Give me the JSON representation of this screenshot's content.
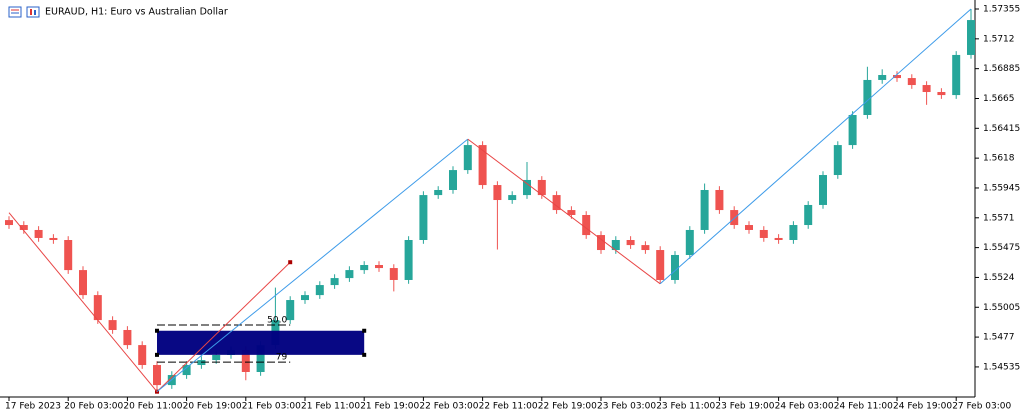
{
  "chart_data": {
    "type": "candlestick",
    "title": "EURAUD, H1:  Euro vs Australian Dollar",
    "annotations": [
      "50.0",
      "79"
    ],
    "categories": [
      "17 Feb 2023",
      null,
      null,
      null,
      "20 Feb 03:00",
      null,
      null,
      null,
      "20 Feb 11:00",
      null,
      null,
      null,
      "20 Feb 19:00",
      null,
      null,
      null,
      "21 Feb 03:00",
      null,
      null,
      null,
      "21 Feb 11:00",
      null,
      null,
      null,
      "21 Feb 19:00",
      null,
      null,
      null,
      "22 Feb 03:00",
      null,
      null,
      null,
      "22 Feb 11:00",
      null,
      null,
      null,
      "22 Feb 19:00",
      null,
      null,
      null,
      "23 Feb 03:00",
      null,
      null,
      null,
      "23 Feb 11:00",
      null,
      null,
      null,
      "23 Feb 19:00",
      null,
      null,
      null,
      "24 Feb 03:00",
      null,
      null,
      null,
      "24 Feb 11:00",
      null,
      null,
      null,
      "24 Feb 19:00",
      null,
      null,
      null,
      "27 Feb 03:00",
      null
    ],
    "open": [
      1.55692,
      1.55653,
      1.55614,
      1.55551,
      1.55535,
      1.55298,
      1.55101,
      1.54904,
      1.54826,
      1.54707,
      1.5455,
      1.54392,
      1.54471,
      1.5455,
      1.54589,
      1.54629,
      1.54668,
      1.54495,
      1.54707,
      1.54904,
      1.55062,
      1.55101,
      1.5518,
      1.55235,
      1.55298,
      1.55338,
      1.55314,
      1.5522,
      1.55535,
      1.55889,
      1.55929,
      1.56086,
      1.56283,
      1.55968,
      1.5585,
      1.55889,
      1.56008,
      1.55889,
      1.55771,
      1.55732,
      1.55574,
      1.55456,
      1.55535,
      1.55495,
      1.55456,
      1.5522,
      1.55417,
      1.55614,
      1.55929,
      1.55771,
      1.55653,
      1.55614,
      1.55551,
      1.55535,
      1.55653,
      1.55811,
      1.56047,
      1.56283,
      1.5652,
      1.56796,
      1.56835,
      1.56811,
      1.56756,
      1.56701,
      1.56677,
      1.56993
    ],
    "high": [
      1.55722,
      1.55683,
      1.55644,
      1.55581,
      1.55565,
      1.55328,
      1.55131,
      1.54934,
      1.54856,
      1.54737,
      1.5458,
      1.54501,
      1.5458,
      1.54619,
      1.54659,
      1.54698,
      1.54698,
      1.54737,
      1.5516,
      1.55092,
      1.55131,
      1.5521,
      1.55265,
      1.55328,
      1.55368,
      1.55368,
      1.55344,
      1.55565,
      1.55919,
      1.55959,
      1.56116,
      1.5633,
      1.56313,
      1.55998,
      1.55919,
      1.5615,
      1.56038,
      1.55919,
      1.55801,
      1.55762,
      1.55604,
      1.55565,
      1.55565,
      1.55525,
      1.55486,
      1.55447,
      1.55644,
      1.5598,
      1.55959,
      1.55801,
      1.55683,
      1.55644,
      1.55581,
      1.55683,
      1.55841,
      1.56077,
      1.56313,
      1.5655,
      1.569,
      1.5688,
      1.56865,
      1.56841,
      1.56786,
      1.56731,
      1.57023,
      1.57355
    ],
    "low": [
      1.55623,
      1.55584,
      1.55521,
      1.55505,
      1.55268,
      1.55071,
      1.54874,
      1.54796,
      1.54677,
      1.5452,
      1.5434,
      1.54362,
      1.54441,
      1.5452,
      1.54559,
      1.54599,
      1.5443,
      1.54465,
      1.54677,
      1.54874,
      1.55032,
      1.55071,
      1.5515,
      1.55205,
      1.55268,
      1.55284,
      1.5513,
      1.5519,
      1.55505,
      1.55859,
      1.55899,
      1.56056,
      1.55938,
      1.5546,
      1.5582,
      1.55859,
      1.55859,
      1.55741,
      1.55702,
      1.55544,
      1.55426,
      1.55426,
      1.55465,
      1.55426,
      1.5519,
      1.5519,
      1.55387,
      1.55584,
      1.55741,
      1.55623,
      1.55584,
      1.55521,
      1.55505,
      1.55505,
      1.55623,
      1.55781,
      1.56017,
      1.56253,
      1.5649,
      1.56766,
      1.56781,
      1.56726,
      1.566,
      1.56647,
      1.56647,
      1.56963
    ],
    "close": [
      1.55653,
      1.55614,
      1.55551,
      1.55535,
      1.55298,
      1.55101,
      1.54904,
      1.54826,
      1.54707,
      1.5455,
      1.54392,
      1.54471,
      1.5455,
      1.54589,
      1.54629,
      1.54668,
      1.54495,
      1.54707,
      1.54904,
      1.55062,
      1.55101,
      1.5518,
      1.55235,
      1.55298,
      1.55338,
      1.55314,
      1.5522,
      1.55535,
      1.55889,
      1.55929,
      1.56086,
      1.56283,
      1.55968,
      1.5585,
      1.55889,
      1.56008,
      1.55889,
      1.55771,
      1.55732,
      1.55574,
      1.55456,
      1.55535,
      1.55495,
      1.55456,
      1.5522,
      1.55417,
      1.55614,
      1.55929,
      1.55771,
      1.55653,
      1.55614,
      1.55551,
      1.55535,
      1.55653,
      1.55811,
      1.56047,
      1.56283,
      1.5652,
      1.56796,
      1.56835,
      1.56811,
      1.56756,
      1.56701,
      1.56677,
      1.56993,
      1.57268
    ],
    "up_color": "#26a69a",
    "down_color": "#ef5350",
    "ylim": [
      1.54298,
      1.57426
    ],
    "yticks": [
      1.54535,
      1.5477,
      1.55005,
      1.5524,
      1.55475,
      1.5571,
      1.55945,
      1.5618,
      1.56415,
      1.5665,
      1.56885,
      1.5712,
      1.57355
    ],
    "zigzag": {
      "x": [
        0,
        10,
        31,
        44,
        65
      ],
      "values": [
        1.5575,
        1.5434,
        1.5633,
        1.5519,
        1.57355
      ],
      "up_color": "#3d9be9",
      "down_color": "#e84545"
    },
    "rectangle": {
      "x": [
        10,
        24
      ],
      "values": [
        1.5482,
        1.5463
      ],
      "color": "#000080"
    },
    "trendline": {
      "x": [
        10,
        19
      ],
      "values": [
        1.5434,
        1.5536
      ],
      "color": "#e84545"
    },
    "fibonacci": {
      "x": [
        10,
        19
      ],
      "levels": [
        1.54865,
        1.54573
      ]
    }
  }
}
